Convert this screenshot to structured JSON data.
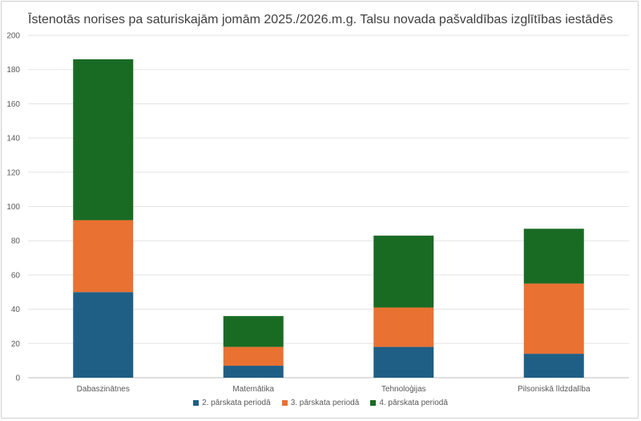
{
  "chart_data": {
    "type": "bar",
    "stacked": true,
    "title": "Īstenotās norises pa saturiskajām jomām 2025./2026.m.g. Talsu novada pašvaldības izglītības iestādēs",
    "categories": [
      "Dabaszinātnes",
      "Matemātika",
      "Tehnoloģijas",
      "Pilsoniskā līdzdalība"
    ],
    "series": [
      {
        "name": "2. pārskata periodā",
        "values": [
          50,
          7,
          18,
          14
        ],
        "color": "#1f5f86"
      },
      {
        "name": "3. pārskata periodā",
        "values": [
          42,
          11,
          23,
          41
        ],
        "color": "#e97132"
      },
      {
        "name": "4. pārskata periodā",
        "values": [
          94,
          18,
          42,
          32
        ],
        "color": "#196b24"
      }
    ],
    "ylim": [
      0,
      200
    ],
    "yticks": [
      0,
      20,
      40,
      60,
      80,
      100,
      120,
      140,
      160,
      180,
      200
    ],
    "grid": true,
    "legend": "bottom"
  }
}
